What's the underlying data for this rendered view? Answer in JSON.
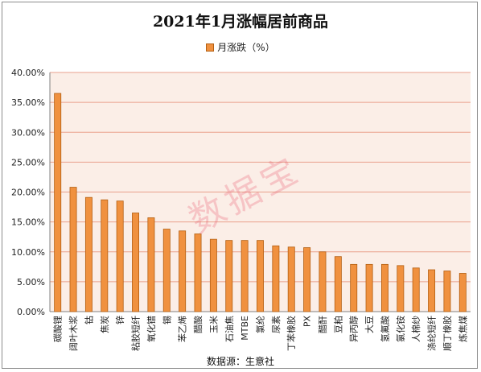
{
  "chart_data": {
    "type": "bar",
    "title": "2021年1月涨幅居前商品",
    "legend": "月涨跌（%）",
    "source": "数据源：生意社",
    "watermark": "数据宝",
    "categories": [
      "碳酸锂",
      "阔叶木浆",
      "钴",
      "焦炭",
      "锌",
      "粘胶短纤",
      "氧化镨",
      "锡",
      "苯乙烯",
      "醋酸",
      "玉米",
      "石油焦",
      "MTBE",
      "氯纶",
      "尿素",
      "丁苯橡胶",
      "PX",
      "醋酐",
      "豆粕",
      "异丙醇",
      "大豆",
      "氢氟酸",
      "氯化铵",
      "人棉纱",
      "涤纶短纤",
      "顺丁橡胶",
      "炼焦煤"
    ],
    "values": [
      36.5,
      20.8,
      19.1,
      18.7,
      18.5,
      16.5,
      15.7,
      13.8,
      13.5,
      13.0,
      12.1,
      11.9,
      11.9,
      11.9,
      11.0,
      10.8,
      10.7,
      10.0,
      9.2,
      7.9,
      7.9,
      7.9,
      7.7,
      7.3,
      7.0,
      6.8,
      6.4
    ],
    "ylim": [
      0,
      40
    ],
    "yticks": [
      "0.00%",
      "5.00%",
      "10.00%",
      "15.00%",
      "20.00%",
      "25.00%",
      "30.00%",
      "35.00%",
      "40.00%"
    ],
    "bar_color": "#f0913f",
    "bar_edge_color": "#b35f12",
    "plot_bg_color": "#fbeee7",
    "grid_color": "#e9a08c",
    "grid": true,
    "legend_position": "top"
  }
}
